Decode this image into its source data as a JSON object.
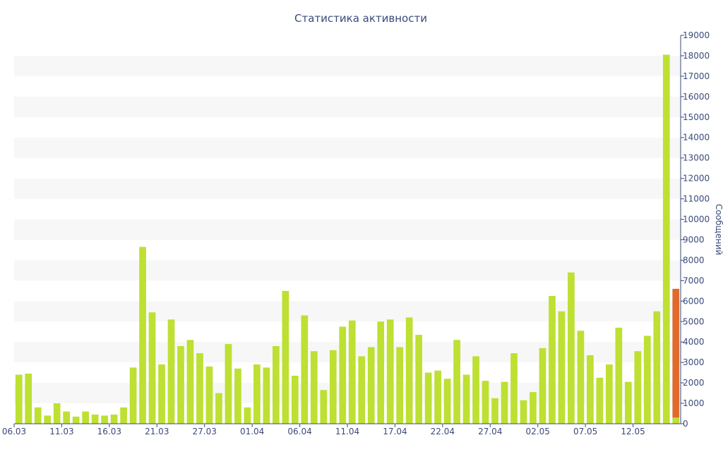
{
  "chart_data": {
    "type": "bar",
    "title": "Статистика активности",
    "ylabel": "Сообщений",
    "xlabel": "",
    "ylim": [
      0,
      19000
    ],
    "y_ticks": [
      0,
      1000,
      2000,
      3000,
      4000,
      5000,
      6000,
      7000,
      8000,
      9000,
      10000,
      11000,
      12000,
      13000,
      14000,
      15000,
      16000,
      17000,
      18000,
      19000
    ],
    "x_tick_labels": [
      "06.03",
      "11.03",
      "16.03",
      "21.03",
      "27.03",
      "01.04",
      "06.04",
      "11.04",
      "17.04",
      "22.04",
      "27.04",
      "02.05",
      "07.05",
      "12.05"
    ],
    "x_tick_indices": [
      0,
      5,
      10,
      15,
      20,
      25,
      30,
      35,
      40,
      45,
      50,
      55,
      60,
      65
    ],
    "grid": "horizontal bands",
    "colors": {
      "bar": "#bde033",
      "highlight": "#e06a2c",
      "text": "#3a4a7a",
      "band": "#f7f7f7"
    },
    "series": [
      {
        "values": [
          2400,
          2450,
          800,
          400,
          1000,
          600,
          350,
          600,
          450,
          400,
          450,
          800,
          2750,
          8650,
          5450,
          2900,
          5100,
          3800,
          4100,
          3450,
          2800,
          1500,
          3900,
          2700,
          800,
          2900,
          2750,
          3800,
          6500,
          2350,
          5300,
          3550,
          1650,
          3600,
          4750,
          5050,
          3300,
          3750,
          5000,
          5100,
          3750,
          5200,
          4350,
          2500,
          2600,
          2200,
          4100,
          2400,
          3300,
          2100,
          1250,
          2050,
          3450,
          1150,
          1550,
          3700,
          6250,
          5500,
          7400,
          4550,
          3350,
          2250,
          2900,
          4700,
          2050,
          3550,
          4300,
          5500,
          18050,
          300
        ]
      },
      {
        "values": [
          0,
          0,
          0,
          0,
          0,
          0,
          0,
          0,
          0,
          0,
          0,
          0,
          0,
          0,
          0,
          0,
          0,
          0,
          0,
          0,
          0,
          0,
          0,
          0,
          0,
          0,
          0,
          0,
          0,
          0,
          0,
          0,
          0,
          0,
          0,
          0,
          0,
          0,
          0,
          0,
          0,
          0,
          0,
          0,
          0,
          0,
          0,
          0,
          0,
          0,
          0,
          0,
          0,
          0,
          0,
          0,
          0,
          0,
          0,
          0,
          0,
          0,
          0,
          0,
          0,
          0,
          0,
          0,
          0,
          6300
        ]
      }
    ]
  }
}
